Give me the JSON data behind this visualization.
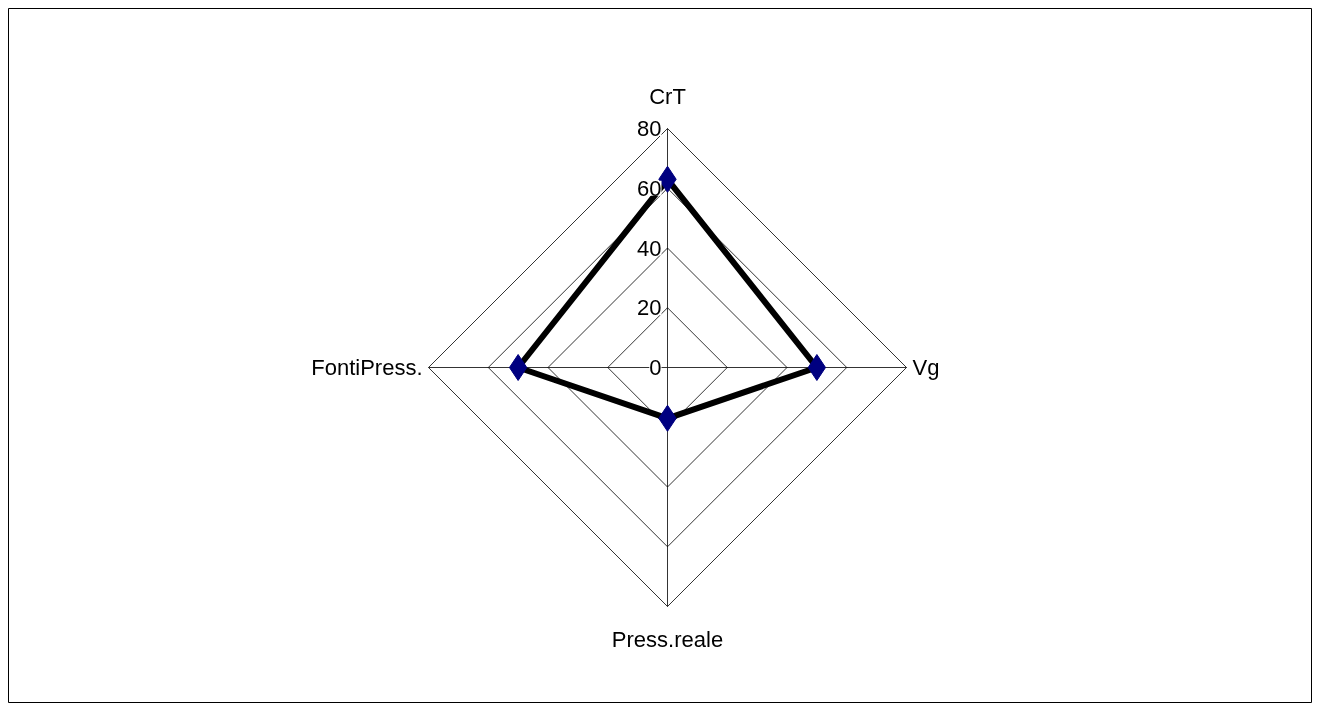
{
  "chart_data": {
    "type": "radar",
    "categories": [
      "CrT",
      "Vg",
      "Press.reale",
      "FontiPress."
    ],
    "series": [
      {
        "color": "#000000",
        "colors": [
          "#000080",
          "#000080",
          "#000080",
          "#000080"
        ],
        "values": [
          63,
          50,
          17,
          50
        ]
      }
    ],
    "ylim": [
      0,
      80
    ],
    "yticks": [
      0,
      20,
      40,
      60,
      80
    ],
    "grid": true,
    "marker": "diamond",
    "line_style": "solid"
  }
}
